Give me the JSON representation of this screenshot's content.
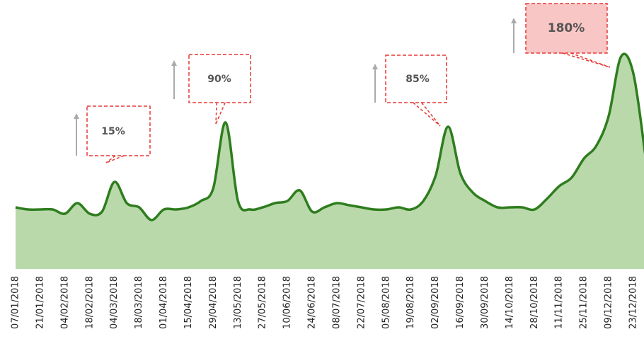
{
  "chart_data": {
    "type": "area",
    "categories": [
      "07/01/2018",
      null,
      "21/01/2018",
      null,
      "04/02/2018",
      null,
      "18/02/2018",
      null,
      "04/03/2018",
      null,
      "18/03/2018",
      null,
      "01/04/2018",
      null,
      "15/04/2018",
      null,
      "29/04/2018",
      null,
      "13/05/2018",
      null,
      "27/05/2018",
      null,
      "10/06/2018",
      null,
      "24/06/2018",
      null,
      "08/07/2018",
      null,
      "22/07/2018",
      null,
      "05/08/2018",
      null,
      "19/08/2018",
      null,
      "02/09/2018",
      null,
      "16/09/2018",
      null,
      "30/09/2018",
      null,
      "14/10/2018",
      null,
      "28/10/2018",
      null,
      "11/11/2018",
      null,
      "25/11/2018",
      null,
      "09/12/2018",
      null,
      "23/12/2018",
      null
    ],
    "values": [
      29,
      28,
      28,
      28,
      26,
      31,
      26,
      27,
      41,
      31,
      29,
      23,
      28,
      28,
      29,
      32,
      38,
      69,
      32,
      28,
      29,
      31,
      32,
      37,
      27,
      29,
      31,
      30,
      29,
      28,
      28,
      29,
      28,
      32,
      44,
      67,
      45,
      36,
      32,
      29,
      29,
      29,
      28,
      33,
      39,
      43,
      52,
      58,
      72,
      100,
      92,
      52
    ],
    "color": "#2e7d1e",
    "fill": "#b9d9ab",
    "ylim": [
      0,
      104
    ],
    "annotations": [
      "15%",
      "90%",
      "85%",
      "180%"
    ]
  }
}
